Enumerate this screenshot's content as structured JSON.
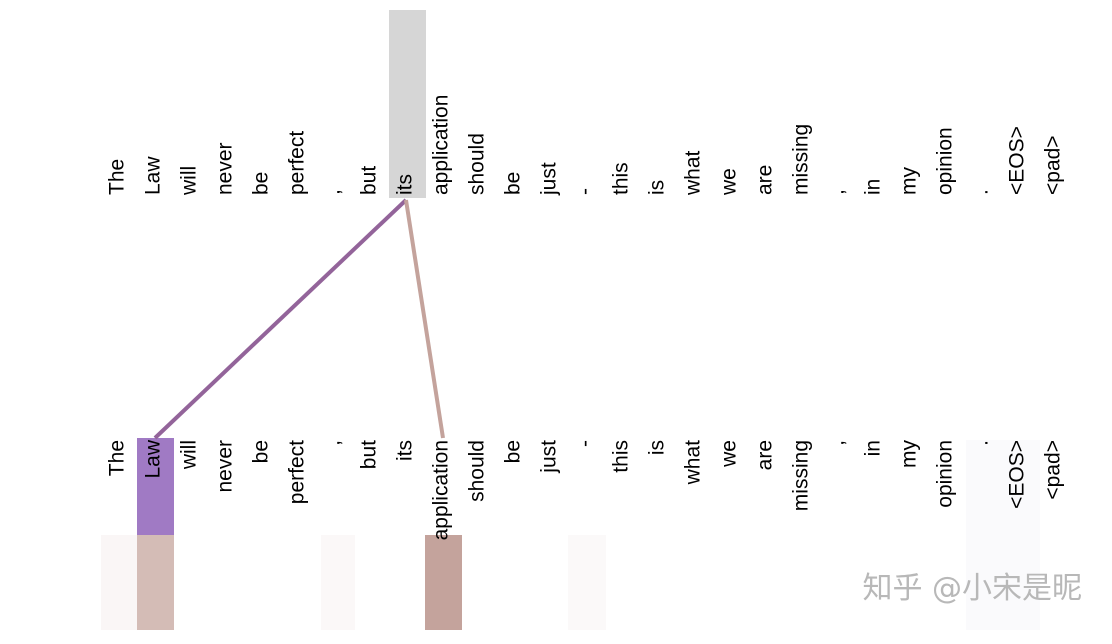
{
  "top_tokens": [
    "The",
    "Law",
    "will",
    "never",
    "be",
    "perfect",
    ",",
    "but",
    "its",
    "application",
    "should",
    "be",
    "just",
    "-",
    "this",
    "is",
    "what",
    "we",
    "are",
    "missing",
    ",",
    "in",
    "my",
    "opinion",
    ".",
    "<EOS>",
    "<pad>"
  ],
  "bottom_tokens": [
    "The",
    "Law",
    "will",
    "never",
    "be",
    "perfect",
    ",",
    "but",
    "its",
    "application",
    "should",
    "be",
    "just",
    "-",
    "this",
    "is",
    "what",
    "we",
    "are",
    "missing",
    ",",
    "in",
    "my",
    "opinion",
    ".",
    "<EOS>",
    "<pad>"
  ],
  "watermark": "知乎 @小宋是昵"
}
